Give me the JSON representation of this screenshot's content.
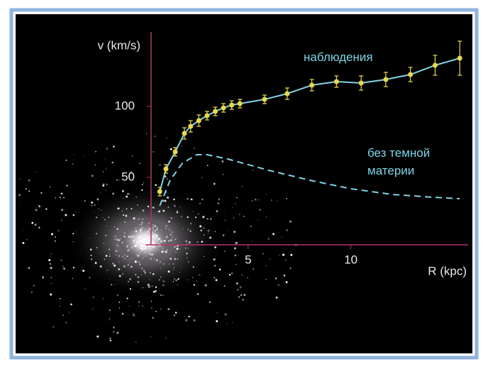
{
  "chart_data": {
    "type": "line",
    "x_label": "R (kpc)",
    "y_label": "v (km/s)",
    "xlim": [
      0,
      15.5
    ],
    "ylim": [
      0,
      150
    ],
    "xticks": [
      5,
      10
    ],
    "yticks": [
      50,
      100
    ],
    "series": [
      {
        "name": "наблюдения",
        "color": "#e8d84a",
        "line_color": "#7fd3e6",
        "x": [
          0.7,
          1.0,
          1.45,
          1.9,
          2.2,
          2.6,
          3.0,
          3.4,
          3.8,
          4.2,
          4.6,
          5.8,
          6.9,
          8.1,
          9.3,
          10.5,
          11.7,
          12.9,
          14.1,
          15.3
        ],
        "values": [
          40,
          56,
          68,
          81,
          86,
          90,
          93.5,
          96.5,
          99,
          101,
          102,
          105,
          109,
          115,
          117.5,
          116.5,
          119,
          122.5,
          129,
          134
        ],
        "errors": [
          3,
          3,
          3,
          4,
          4,
          4,
          3,
          3,
          3,
          3,
          3,
          3,
          4,
          4,
          4,
          5,
          5,
          5,
          7,
          12
        ]
      },
      {
        "name": "без темной материи",
        "color": "#7fd3e6",
        "dashed": true,
        "x": [
          0.7,
          1.2,
          1.8,
          2.5,
          3.0,
          4.0,
          6.0,
          8.0,
          10.0,
          12.0,
          14.0,
          15.3
        ],
        "values": [
          30,
          48,
          60,
          66,
          66,
          63,
          55,
          48,
          42,
          38,
          36,
          35
        ]
      }
    ]
  }
}
